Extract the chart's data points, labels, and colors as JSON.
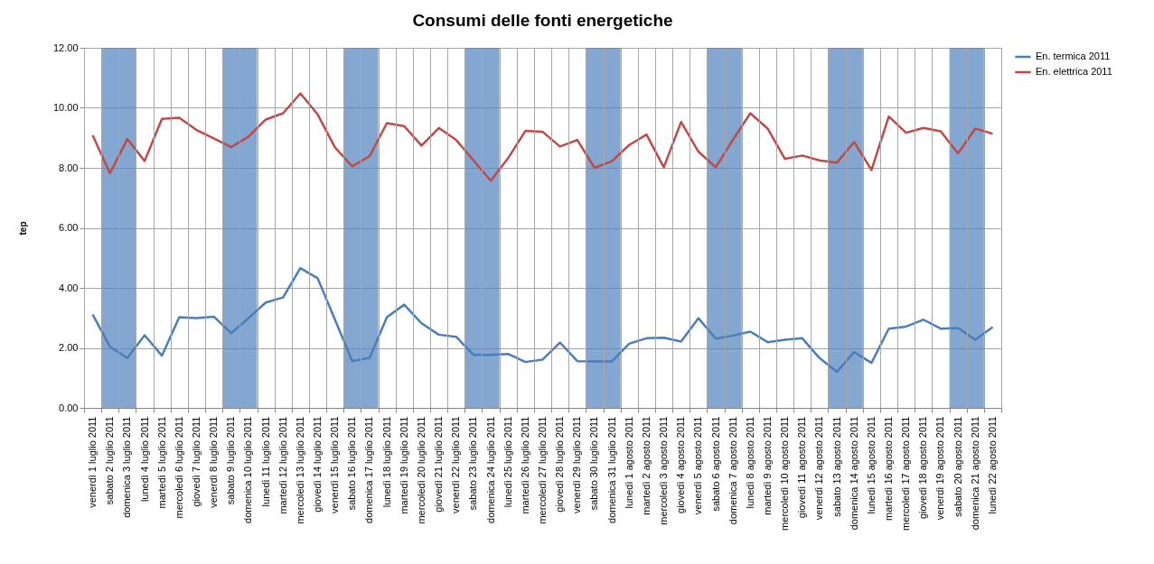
{
  "chart_data": {
    "type": "line",
    "title": "Consumi delle fonti energetiche",
    "ylabel": "tep",
    "categories": [
      "venerdì 1 luglio 2011",
      "sabato 2 luglio 2011",
      "domenica 3 luglio 2011",
      "lunedì 4 luglio 2011",
      "martedì 5 luglio 2011",
      "mercoledì 6 luglio 2011",
      "giovedì 7 luglio 2011",
      "venerdì 8 luglio 2011",
      "sabato 9 luglio 2011",
      "domenica 10 luglio 2011",
      "lunedì 11 luglio 2011",
      "martedì 12 luglio 2011",
      "mercoledì 13 luglio 2011",
      "giovedì 14 luglio 2011",
      "venerdì 15 luglio 2011",
      "sabato 16 luglio 2011",
      "domenica 17 luglio 2011",
      "lunedì 18 luglio 2011",
      "martedì 19 luglio 2011",
      "mercoledì 20 luglio 2011",
      "giovedì 21 luglio 2011",
      "venerdì 22 luglio 2011",
      "sabato 23 luglio 2011",
      "domenica 24 luglio 2011",
      "lunedì 25 luglio 2011",
      "martedì 26 luglio 2011",
      "mercoledì 27 luglio 2011",
      "giovedì 28 luglio 2011",
      "venerdì 29 luglio 2011",
      "sabato 30 luglio 2011",
      "domenica 31 luglio 2011",
      "lunedì 1 agosto 2011",
      "martedì 2 agosto 2011",
      "mercoledì 3 agosto 2011",
      "giovedì 4 agosto 2011",
      "venerdì 5 agosto 2011",
      "sabato 6 agosto 2011",
      "domenica 7 agosto 2011",
      "lunedì 8 agosto 2011",
      "martedì 9 agosto 2011",
      "mercoledì 10 agosto 2011",
      "giovedì 11 agosto 2011",
      "venerdì 12 agosto 2011",
      "sabato 13 agosto 2011",
      "domenica 14 agosto 2011",
      "lunedì 15 agosto 2011",
      "martedì 16 agosto 2011",
      "mercoledì 17 agosto 2011",
      "giovedì 18 agosto 2011",
      "venerdì 19 agosto 2011",
      "sabato 20 agosto 2011",
      "domenica 21 agosto 2011",
      "lunedì 22 agosto 2011"
    ],
    "series": [
      {
        "name": "En. termica 2011",
        "color": "#4a7ebb",
        "values": [
          3.11,
          2.04,
          1.66,
          2.42,
          1.74,
          3.02,
          2.99,
          3.04,
          2.49,
          2.99,
          3.51,
          3.68,
          4.66,
          4.32,
          2.94,
          1.56,
          1.67,
          3.02,
          3.44,
          2.82,
          2.44,
          2.37,
          1.77,
          1.77,
          1.8,
          1.53,
          1.61,
          2.18,
          1.56,
          1.55,
          1.55,
          2.14,
          2.32,
          2.34,
          2.21,
          2.99,
          2.31,
          2.41,
          2.54,
          2.19,
          2.27,
          2.32,
          1.66,
          1.2,
          1.86,
          1.5,
          2.64,
          2.71,
          2.94,
          2.64,
          2.66,
          2.27,
          2.69
        ]
      },
      {
        "name": "En. elettrica 2011",
        "color": "#be4b48",
        "values": [
          9.08,
          7.82,
          8.96,
          8.23,
          9.63,
          9.67,
          9.26,
          8.98,
          8.69,
          9.04,
          9.61,
          9.82,
          10.48,
          9.78,
          8.68,
          8.05,
          8.39,
          9.49,
          9.39,
          8.74,
          9.33,
          8.93,
          8.25,
          7.57,
          8.32,
          9.23,
          9.2,
          8.71,
          8.93,
          8,
          8.22,
          8.76,
          9.11,
          8.02,
          9.53,
          8.54,
          8.02,
          8.94,
          9.82,
          9.31,
          8.3,
          8.41,
          8.25,
          8.17,
          8.86,
          7.93,
          9.71,
          9.17,
          9.33,
          9.22,
          8.48,
          9.31,
          9.14
        ]
      }
    ],
    "ylim": [
      0,
      12
    ],
    "yticks": [
      {
        "value": 0,
        "label": "0.00"
      },
      {
        "value": 2,
        "label": "2.00"
      },
      {
        "value": 4,
        "label": "4.00"
      },
      {
        "value": 6,
        "label": "6.00"
      },
      {
        "value": 8,
        "label": "8.00"
      },
      {
        "value": 10,
        "label": "10.00"
      },
      {
        "value": 12,
        "label": "12.00"
      }
    ],
    "bands": [
      {
        "axis": "x",
        "from": "sabato 2 luglio 2011",
        "to": "domenica 3 luglio 2011",
        "color": "#4f81bd"
      },
      {
        "axis": "x",
        "from": "sabato 9 luglio 2011",
        "to": "domenica 10 luglio 2011",
        "color": "#4f81bd"
      },
      {
        "axis": "x",
        "from": "sabato 16 luglio 2011",
        "to": "domenica 17 luglio 2011",
        "color": "#4f81bd"
      },
      {
        "axis": "x",
        "from": "sabato 23 luglio 2011",
        "to": "domenica 24 luglio 2011",
        "color": "#4f81bd"
      },
      {
        "axis": "x",
        "from": "sabato 30 luglio 2011",
        "to": "domenica 31 luglio 2011",
        "color": "#4f81bd"
      },
      {
        "axis": "x",
        "from": "sabato 6 agosto 2011",
        "to": "domenica 7 agosto 2011",
        "color": "#4f81bd"
      },
      {
        "axis": "x",
        "from": "sabato 13 agosto 2011",
        "to": "domenica 14 agosto 2011",
        "color": "#4f81bd"
      },
      {
        "axis": "x",
        "from": "sabato 20 agosto 2011",
        "to": "domenica 21 agosto 2011",
        "color": "#4f81bd"
      }
    ],
    "grid": true,
    "legend": "right",
    "marker": "none",
    "line_style": "solid"
  }
}
